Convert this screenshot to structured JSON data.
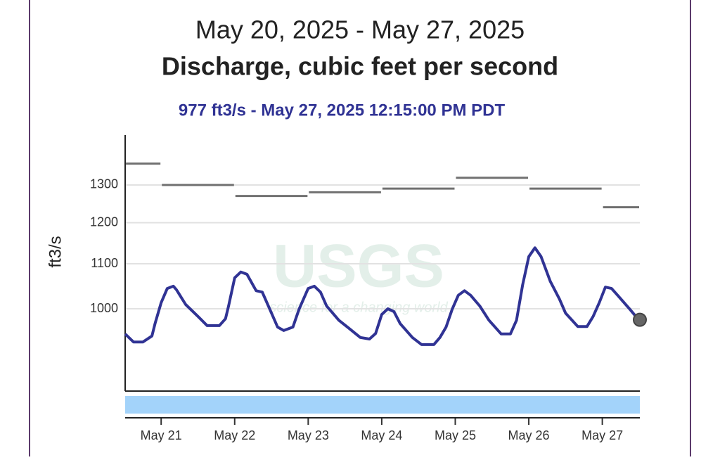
{
  "chart_data": {
    "type": "line",
    "title": "May 20, 2025 - May 27, 2025",
    "subtitle": "Discharge, cubic feet per second",
    "annotation": "977 ft3/s - May 27, 2025 12:15:00 PM PDT",
    "y_label": "ft3/s",
    "watermark": "USGS",
    "watermark_tagline": "science for a changing world",
    "log_scale": true,
    "grid": true,
    "xlim": [
      "2025-05-20T12:15",
      "2025-05-27T12:15"
    ],
    "xticks": [
      {
        "value": "2025-05-21T00:00",
        "label": "May 21"
      },
      {
        "value": "2025-05-22T00:00",
        "label": "May 22"
      },
      {
        "value": "2025-05-23T00:00",
        "label": "May 23"
      },
      {
        "value": "2025-05-24T00:00",
        "label": "May 24"
      },
      {
        "value": "2025-05-25T00:00",
        "label": "May 25"
      },
      {
        "value": "2025-05-26T00:00",
        "label": "May 26"
      },
      {
        "value": "2025-05-27T00:00",
        "label": "May 27"
      }
    ],
    "ylim": [
      840,
      1445
    ],
    "yticks": [
      1000,
      1100,
      1200,
      1300
    ],
    "x": [
      "2025-05-20T12:15",
      "2025-05-20T15:00",
      "2025-05-20T18:00",
      "2025-05-20T21:00",
      "2025-05-20T22:00",
      "2025-05-21T00:00",
      "2025-05-21T02:00",
      "2025-05-21T04:00",
      "2025-05-21T05:00",
      "2025-05-21T08:00",
      "2025-05-21T12:00",
      "2025-05-21T15:00",
      "2025-05-21T19:00",
      "2025-05-21T21:00",
      "2025-05-21T22:00",
      "2025-05-22T00:00",
      "2025-05-22T02:00",
      "2025-05-22T04:00",
      "2025-05-22T07:00",
      "2025-05-22T09:00",
      "2025-05-22T12:00",
      "2025-05-22T14:00",
      "2025-05-22T16:00",
      "2025-05-22T19:00",
      "2025-05-22T21:00",
      "2025-05-23T00:00",
      "2025-05-23T02:00",
      "2025-05-23T04:00",
      "2025-05-23T06:00",
      "2025-05-23T10:00",
      "2025-05-23T13:00",
      "2025-05-23T17:00",
      "2025-05-23T20:00",
      "2025-05-23T22:00",
      "2025-05-24T00:00",
      "2025-05-24T02:00",
      "2025-05-24T04:00",
      "2025-05-24T06:00",
      "2025-05-24T10:00",
      "2025-05-24T13:00",
      "2025-05-24T17:00",
      "2025-05-24T19:00",
      "2025-05-24T21:00",
      "2025-05-24T23:00",
      "2025-05-25T01:00",
      "2025-05-25T03:00",
      "2025-05-25T05:00",
      "2025-05-25T08:00",
      "2025-05-25T11:00",
      "2025-05-25T15:00",
      "2025-05-25T18:00",
      "2025-05-25T20:00",
      "2025-05-25T22:00",
      "2025-05-26T00:00",
      "2025-05-26T02:00",
      "2025-05-26T04:00",
      "2025-05-26T07:00",
      "2025-05-26T10:00",
      "2025-05-26T12:00",
      "2025-05-26T16:00",
      "2025-05-26T19:00",
      "2025-05-26T21:00",
      "2025-05-26T23:00",
      "2025-05-27T01:00",
      "2025-05-27T03:00",
      "2025-05-27T05:00",
      "2025-05-27T09:00",
      "2025-05-27T12:00",
      "2025-05-27T12:15"
    ],
    "series": [
      {
        "color": "#303394",
        "values": [
          948,
          932,
          932,
          944,
          969,
          1013,
          1044,
          1049,
          1041,
          1009,
          984,
          965,
          965,
          979,
          1006,
          1068,
          1081,
          1076,
          1039,
          1036,
          991,
          962,
          955,
          962,
          999,
          1044,
          1049,
          1036,
          1006,
          976,
          961,
          941,
          938,
          949,
          988,
          1000,
          994,
          969,
          941,
          927,
          927,
          941,
          962,
          999,
          1029,
          1039,
          1029,
          1006,
          976,
          948,
          948,
          976,
          1052,
          1117,
          1138,
          1117,
          1060,
          1021,
          991,
          963,
          963,
          984,
          1013,
          1047,
          1044,
          1029,
          999,
          976,
          977
        ]
      }
    ],
    "daily_median": {
      "color": "#707070",
      "x": [
        "2025-05-20",
        "2025-05-21",
        "2025-05-22",
        "2025-05-23",
        "2025-05-24",
        "2025-05-25",
        "2025-05-26",
        "2025-05-27"
      ],
      "values": [
        1360,
        1300,
        1270,
        1280,
        1290,
        1320,
        1290,
        1240
      ]
    }
  }
}
